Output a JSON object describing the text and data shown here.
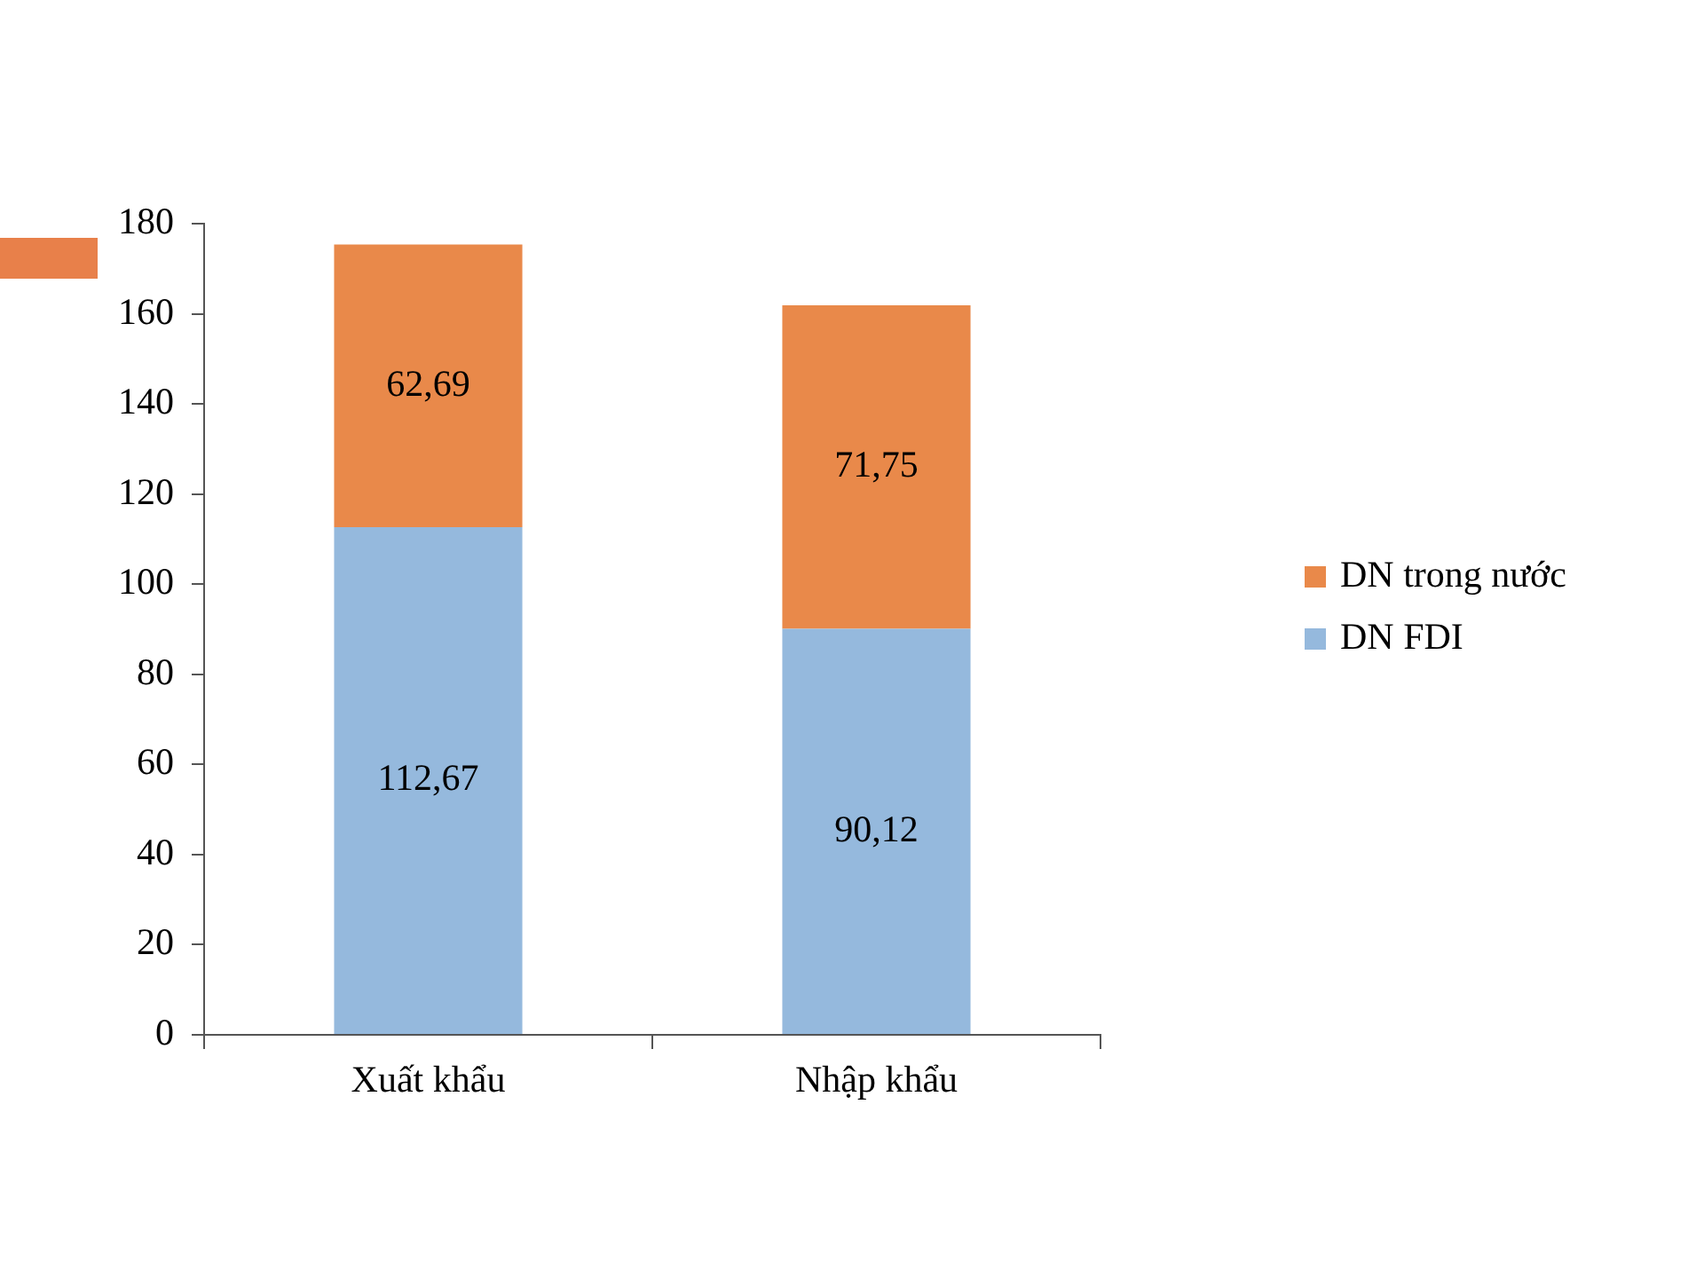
{
  "chart_data": {
    "type": "bar",
    "categories": [
      "Xuất khẩu",
      "Nhập khẩu"
    ],
    "series": [
      {
        "name": "DN FDI",
        "color": "#95b9dd",
        "values": [
          112.67,
          90.12
        ],
        "value_labels": [
          "112,67",
          "90,12"
        ]
      },
      {
        "name": "DN trong nước",
        "color": "#e9894a",
        "values": [
          62.69,
          71.75
        ],
        "value_labels": [
          "62,69",
          "71,75"
        ]
      }
    ],
    "stacked": true,
    "ylim": [
      0,
      180
    ],
    "yticks": [
      0,
      20,
      40,
      60,
      80,
      100,
      120,
      140,
      160,
      180
    ],
    "legend": "right"
  }
}
